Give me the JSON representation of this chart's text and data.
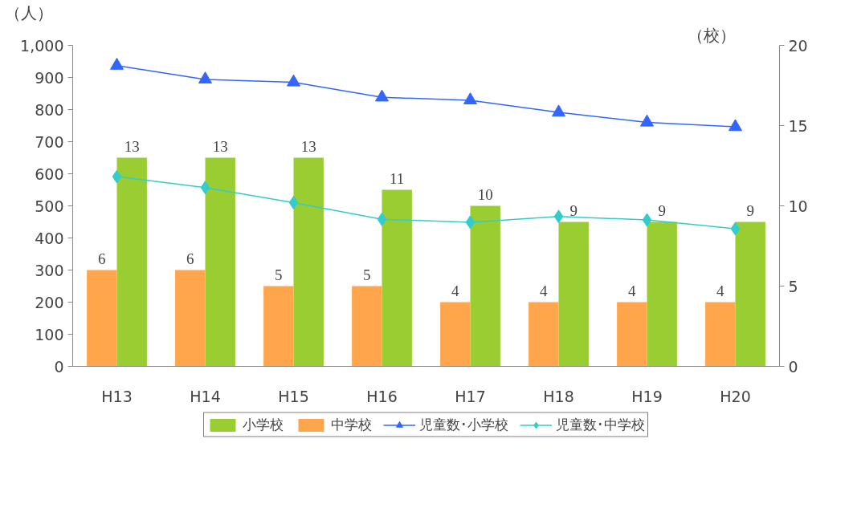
{
  "chart_data": {
    "type": "bar",
    "ylabel": "（人）",
    "y2label": "（校）",
    "categories": [
      "H13",
      "H14",
      "H15",
      "H16",
      "H17",
      "H18",
      "H19",
      "H20"
    ],
    "ylim": [
      0,
      1000
    ],
    "yticks": [
      {
        "value": 0,
        "label": "0"
      },
      {
        "value": 100,
        "label": "100"
      },
      {
        "value": 200,
        "label": "200"
      },
      {
        "value": 300,
        "label": "300"
      },
      {
        "value": 400,
        "label": "400"
      },
      {
        "value": 500,
        "label": "500"
      },
      {
        "value": 600,
        "label": "600"
      },
      {
        "value": 700,
        "label": "700"
      },
      {
        "value": 800,
        "label": "800"
      },
      {
        "value": 900,
        "label": "900"
      },
      {
        "value": 1000,
        "label": "1,000"
      }
    ],
    "y2lim": [
      0,
      20
    ],
    "y2ticks": [
      0,
      5,
      10,
      15,
      20
    ],
    "grid": false,
    "legend": "bottom",
    "series": [
      {
        "name": "小学校",
        "axis": "y2",
        "color": "#9acd32",
        "values": [
          13,
          13,
          13,
          11,
          10,
          9,
          9,
          9
        ],
        "value_labels": [
          "13",
          "13",
          "13",
          "11",
          "10",
          "9",
          "9",
          "9"
        ]
      },
      {
        "name": "中学校",
        "axis": "y2",
        "color": "#ffa64d",
        "values": [
          6,
          6,
          5,
          5,
          4,
          4,
          4,
          4
        ],
        "value_labels": [
          "6",
          "6",
          "5",
          "5",
          "4",
          "4",
          "4",
          "4"
        ]
      },
      {
        "name": "児童数･小学校",
        "type": "line",
        "axis": "y",
        "color": "#3366ff",
        "marker": "triangle",
        "values": [
          937,
          894,
          885,
          838,
          829,
          791,
          760,
          746
        ]
      },
      {
        "name": "児童数･中学校",
        "type": "line",
        "axis": "y",
        "color": "#33cccc",
        "marker": "diamond",
        "values": [
          591,
          557,
          510,
          458,
          449,
          467,
          456,
          429
        ]
      }
    ]
  }
}
